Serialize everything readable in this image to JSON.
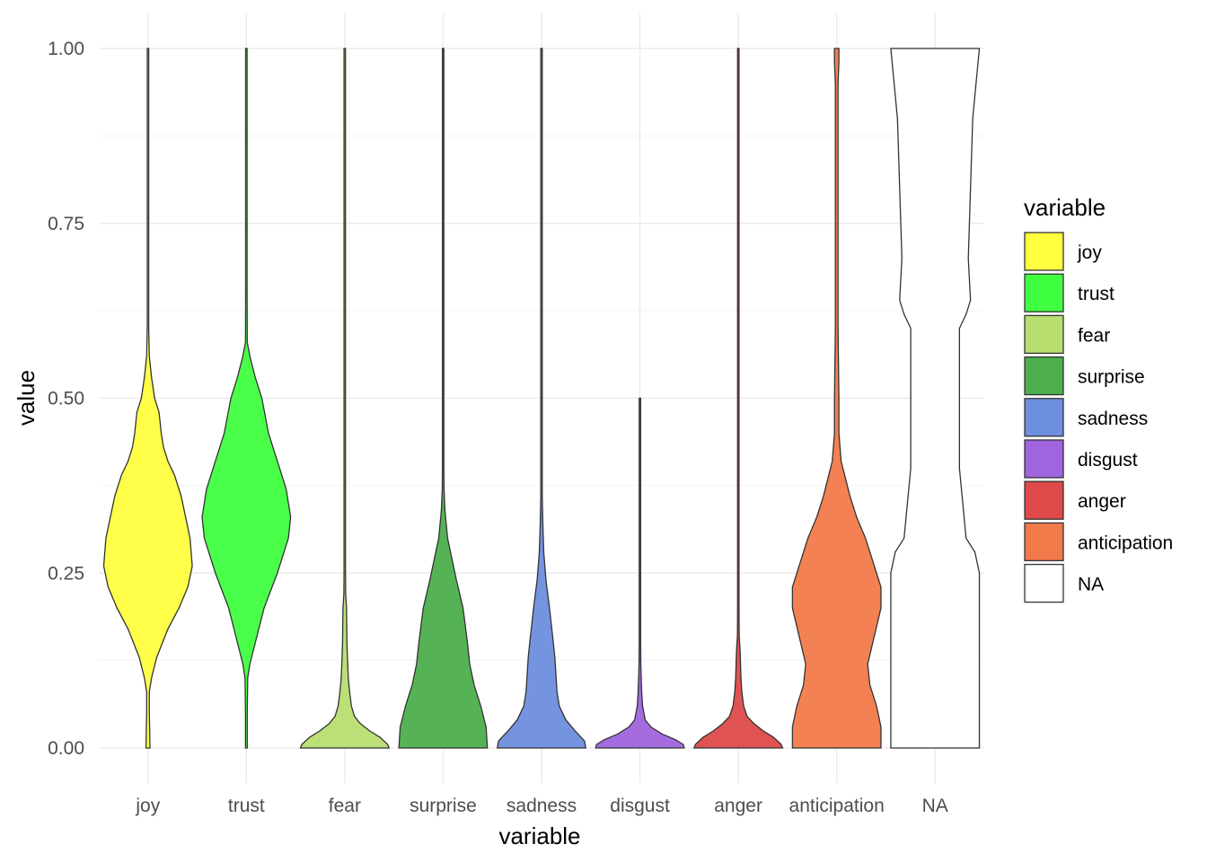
{
  "chart_data": {
    "type": "violin",
    "xlabel": "variable",
    "ylabel": "value",
    "ylim": [
      0,
      1
    ],
    "y_ticks": [
      "0.00",
      "0.25",
      "0.50",
      "0.75",
      "1.00"
    ],
    "y_tick_values": [
      0,
      0.25,
      0.5,
      0.75,
      1.0
    ],
    "categories": [
      "joy",
      "trust",
      "fear",
      "surprise",
      "sadness",
      "disgust",
      "anger",
      "anticipation",
      "NA"
    ],
    "grid": true,
    "legend": {
      "title": "variable",
      "position": "right",
      "entries": [
        {
          "label": "joy",
          "color": "#FFFF40"
        },
        {
          "label": "trust",
          "color": "#40FF40"
        },
        {
          "label": "fear",
          "color": "#B8DE6F"
        },
        {
          "label": "surprise",
          "color": "#4CAF4C"
        },
        {
          "label": "sadness",
          "color": "#6E8EDE"
        },
        {
          "label": "disgust",
          "color": "#A064DE"
        },
        {
          "label": "anger",
          "color": "#DE4A4A"
        },
        {
          "label": "anticipation",
          "color": "#F27A4A"
        },
        {
          "label": "NA",
          "color": "#FFFFFF"
        }
      ]
    },
    "series": [
      {
        "category": "joy",
        "color": "#FFFF40",
        "profile": [
          [
            0,
            0.045
          ],
          [
            0.02,
            0.04
          ],
          [
            0.05,
            0.03
          ],
          [
            0.08,
            0.03
          ],
          [
            0.1,
            0.08
          ],
          [
            0.13,
            0.2
          ],
          [
            0.17,
            0.45
          ],
          [
            0.2,
            0.7
          ],
          [
            0.23,
            0.9
          ],
          [
            0.26,
            1.0
          ],
          [
            0.3,
            0.95
          ],
          [
            0.33,
            0.85
          ],
          [
            0.36,
            0.75
          ],
          [
            0.39,
            0.6
          ],
          [
            0.41,
            0.45
          ],
          [
            0.43,
            0.35
          ],
          [
            0.45,
            0.3
          ],
          [
            0.48,
            0.25
          ],
          [
            0.5,
            0.15
          ],
          [
            0.53,
            0.08
          ],
          [
            0.56,
            0.03
          ],
          [
            0.6,
            0.01
          ],
          [
            1.0,
            0.01
          ]
        ]
      },
      {
        "category": "trust",
        "color": "#40FF40",
        "profile": [
          [
            0,
            0.02
          ],
          [
            0.05,
            0.02
          ],
          [
            0.1,
            0.03
          ],
          [
            0.12,
            0.08
          ],
          [
            0.15,
            0.2
          ],
          [
            0.2,
            0.4
          ],
          [
            0.25,
            0.7
          ],
          [
            0.3,
            0.95
          ],
          [
            0.33,
            1.0
          ],
          [
            0.37,
            0.9
          ],
          [
            0.41,
            0.7
          ],
          [
            0.45,
            0.5
          ],
          [
            0.5,
            0.35
          ],
          [
            0.53,
            0.2
          ],
          [
            0.56,
            0.08
          ],
          [
            0.58,
            0.02
          ],
          [
            0.65,
            0.01
          ],
          [
            0.75,
            0.015
          ],
          [
            0.8,
            0.01
          ],
          [
            1.0,
            0.01
          ]
        ]
      },
      {
        "category": "fear",
        "color": "#B8DE6F",
        "profile": [
          [
            0,
            1.0
          ],
          [
            0.005,
            0.97
          ],
          [
            0.015,
            0.8
          ],
          [
            0.025,
            0.55
          ],
          [
            0.035,
            0.35
          ],
          [
            0.045,
            0.22
          ],
          [
            0.06,
            0.15
          ],
          [
            0.08,
            0.11
          ],
          [
            0.1,
            0.08
          ],
          [
            0.13,
            0.06
          ],
          [
            0.15,
            0.05
          ],
          [
            0.2,
            0.04
          ],
          [
            0.22,
            0.02
          ],
          [
            0.25,
            0.01
          ],
          [
            1.0,
            0.01
          ]
        ]
      },
      {
        "category": "surprise",
        "color": "#4CAF4C",
        "profile": [
          [
            0,
            1.0
          ],
          [
            0.03,
            0.97
          ],
          [
            0.06,
            0.85
          ],
          [
            0.09,
            0.7
          ],
          [
            0.12,
            0.6
          ],
          [
            0.15,
            0.55
          ],
          [
            0.2,
            0.45
          ],
          [
            0.24,
            0.3
          ],
          [
            0.27,
            0.2
          ],
          [
            0.3,
            0.1
          ],
          [
            0.34,
            0.04
          ],
          [
            0.37,
            0.02
          ],
          [
            0.4,
            0.01
          ],
          [
            1.0,
            0.01
          ]
        ]
      },
      {
        "category": "sadness",
        "color": "#6E8EDE",
        "profile": [
          [
            0,
            1.0
          ],
          [
            0.01,
            0.97
          ],
          [
            0.025,
            0.75
          ],
          [
            0.04,
            0.55
          ],
          [
            0.06,
            0.4
          ],
          [
            0.08,
            0.35
          ],
          [
            0.1,
            0.33
          ],
          [
            0.13,
            0.3
          ],
          [
            0.16,
            0.25
          ],
          [
            0.2,
            0.18
          ],
          [
            0.24,
            0.1
          ],
          [
            0.28,
            0.05
          ],
          [
            0.32,
            0.03
          ],
          [
            0.36,
            0.015
          ],
          [
            0.4,
            0.01
          ],
          [
            1.0,
            0.01
          ]
        ]
      },
      {
        "category": "disgust",
        "color": "#A064DE",
        "profile": [
          [
            0,
            1.0
          ],
          [
            0.005,
            0.98
          ],
          [
            0.012,
            0.8
          ],
          [
            0.02,
            0.5
          ],
          [
            0.03,
            0.25
          ],
          [
            0.04,
            0.12
          ],
          [
            0.06,
            0.06
          ],
          [
            0.08,
            0.04
          ],
          [
            0.1,
            0.03
          ],
          [
            0.12,
            0.02
          ],
          [
            0.15,
            0.015
          ],
          [
            0.18,
            0.01
          ],
          [
            0.5,
            0.005
          ]
        ]
      },
      {
        "category": "anger",
        "color": "#DE4A4A",
        "profile": [
          [
            0,
            1.0
          ],
          [
            0.005,
            0.97
          ],
          [
            0.015,
            0.8
          ],
          [
            0.025,
            0.55
          ],
          [
            0.035,
            0.35
          ],
          [
            0.045,
            0.2
          ],
          [
            0.06,
            0.12
          ],
          [
            0.08,
            0.08
          ],
          [
            0.1,
            0.06
          ],
          [
            0.12,
            0.05
          ],
          [
            0.14,
            0.04
          ],
          [
            0.16,
            0.02
          ],
          [
            0.2,
            0.01
          ],
          [
            1.0,
            0.01
          ]
        ]
      },
      {
        "category": "anticipation",
        "color": "#F27A4A",
        "profile": [
          [
            0,
            1.0
          ],
          [
            0.03,
            1.0
          ],
          [
            0.06,
            0.9
          ],
          [
            0.09,
            0.75
          ],
          [
            0.12,
            0.7
          ],
          [
            0.16,
            0.85
          ],
          [
            0.2,
            1.0
          ],
          [
            0.23,
            1.0
          ],
          [
            0.26,
            0.85
          ],
          [
            0.3,
            0.65
          ],
          [
            0.33,
            0.45
          ],
          [
            0.36,
            0.3
          ],
          [
            0.39,
            0.18
          ],
          [
            0.41,
            0.1
          ],
          [
            0.45,
            0.05
          ],
          [
            0.5,
            0.05
          ],
          [
            0.55,
            0.04
          ],
          [
            0.6,
            0.03
          ],
          [
            0.95,
            0.03
          ],
          [
            0.98,
            0.05
          ],
          [
            1.0,
            0.05
          ]
        ]
      },
      {
        "category": "NA",
        "color": "#FFFFFF",
        "profile": [
          [
            0,
            1.0
          ],
          [
            0.1,
            1.0
          ],
          [
            0.25,
            1.0
          ],
          [
            0.28,
            0.9
          ],
          [
            0.3,
            0.7
          ],
          [
            0.4,
            0.55
          ],
          [
            0.6,
            0.55
          ],
          [
            0.62,
            0.7
          ],
          [
            0.64,
            0.8
          ],
          [
            0.7,
            0.75
          ],
          [
            0.9,
            0.85
          ],
          [
            1.0,
            1.0
          ]
        ]
      }
    ]
  }
}
